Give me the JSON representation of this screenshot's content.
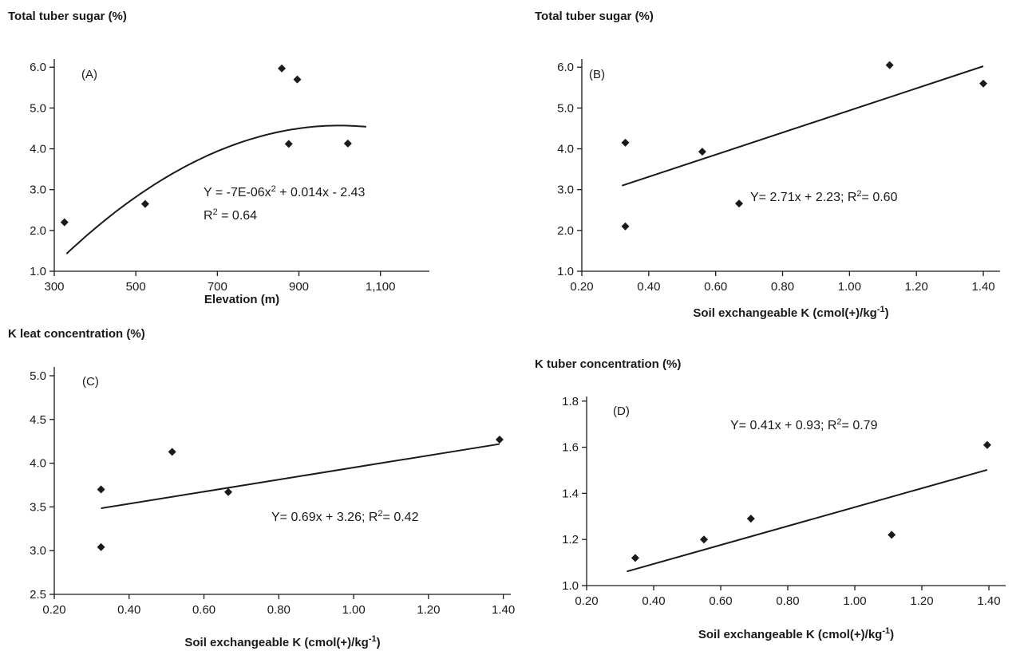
{
  "chart_data": [
    {
      "type": "scatter",
      "panel": "(A)",
      "ylabel": "Total tuber sugar (%)",
      "xlabel": "Elevation (m)",
      "xlim": [
        300,
        1220
      ],
      "ylim": [
        1.0,
        6.2
      ],
      "x_ticks": [
        300,
        500,
        700,
        900,
        1100
      ],
      "x_tick_labels": [
        "300",
        "500",
        "700",
        "900",
        "1,100"
      ],
      "y_ticks": [
        1.0,
        2.0,
        3.0,
        4.0,
        5.0,
        6.0
      ],
      "y_tick_labels": [
        "1.0",
        "2.0",
        "3.0",
        "4.0",
        "5.0",
        "6.0"
      ],
      "points": [
        {
          "x": 325,
          "y": 2.2
        },
        {
          "x": 523,
          "y": 2.65
        },
        {
          "x": 858,
          "y": 5.97
        },
        {
          "x": 875,
          "y": 4.12
        },
        {
          "x": 896,
          "y": 5.7
        },
        {
          "x": 1020,
          "y": 4.13
        }
      ],
      "fit": {
        "kind": "poly2",
        "a": -7e-06,
        "b": 0.014,
        "c": -2.43,
        "x_from": 330,
        "x_to": 1065
      },
      "equation": "Y = -7E-06x",
      "equation_sup": "2",
      "equation_tail": " + 0.014x - 2.43",
      "r2_label": "R",
      "r2_sup": "2",
      "r2_value": " = 0.64"
    },
    {
      "type": "scatter",
      "panel": "(B)",
      "ylabel": "Total tuber sugar (%)",
      "xlabel": "Soil exchangeable K (cmol(+)/kg",
      "xlabel_sup": "-1",
      "xlabel_tail": ")",
      "xlim": [
        0.2,
        1.45
      ],
      "ylim": [
        1.0,
        6.2
      ],
      "x_ticks": [
        0.2,
        0.4,
        0.6,
        0.8,
        1.0,
        1.2,
        1.4
      ],
      "x_tick_labels": [
        "0.20",
        "0.40",
        "0.60",
        "0.80",
        "1.00",
        "1.20",
        "1.40"
      ],
      "y_ticks": [
        1.0,
        2.0,
        3.0,
        4.0,
        5.0,
        6.0
      ],
      "y_tick_labels": [
        "1.0",
        "2.0",
        "3.0",
        "4.0",
        "5.0",
        "6.0"
      ],
      "points": [
        {
          "x": 0.33,
          "y": 4.15
        },
        {
          "x": 0.33,
          "y": 2.1
        },
        {
          "x": 0.56,
          "y": 3.93
        },
        {
          "x": 0.67,
          "y": 2.66
        },
        {
          "x": 1.12,
          "y": 6.05
        },
        {
          "x": 1.4,
          "y": 5.6
        }
      ],
      "fit": {
        "kind": "linear",
        "m": 2.71,
        "b": 2.23,
        "x_from": 0.32,
        "x_to": 1.4
      },
      "equation": "Y= 2.71x + 2.23; R",
      "equation_sup": "2",
      "equation_tail": "= 0.60"
    },
    {
      "type": "scatter",
      "panel": "(C)",
      "ylabel": "K leat concentration (%)",
      "xlabel": "Soil exchangeable K (cmol(+)/kg",
      "xlabel_sup": "-1",
      "xlabel_tail": ")",
      "xlim": [
        0.2,
        1.42
      ],
      "ylim": [
        2.5,
        5.1
      ],
      "x_ticks": [
        0.2,
        0.4,
        0.6,
        0.8,
        1.0,
        1.2,
        1.4
      ],
      "x_tick_labels": [
        "0.20",
        "0.40",
        "0.60",
        "0.80",
        "1.00",
        "1.20",
        "1.40"
      ],
      "y_ticks": [
        2.5,
        3.0,
        3.5,
        4.0,
        4.5,
        5.0
      ],
      "y_tick_labels": [
        "2.5",
        "3.0",
        "3.5",
        "4.0",
        "4.5",
        "5.0"
      ],
      "points": [
        {
          "x": 0.325,
          "y": 3.7
        },
        {
          "x": 0.325,
          "y": 3.04
        },
        {
          "x": 0.515,
          "y": 4.13
        },
        {
          "x": 0.665,
          "y": 3.67
        },
        {
          "x": 1.39,
          "y": 4.27
        }
      ],
      "fit": {
        "kind": "linear",
        "m": 0.69,
        "b": 3.26,
        "x_from": 0.325,
        "x_to": 1.39
      },
      "equation": "Y= 0.69x + 3.26; R",
      "equation_sup": "2",
      "equation_tail": "= 0.42"
    },
    {
      "type": "scatter",
      "panel": "(D)",
      "ylabel": "K tuber concentration (%)",
      "xlabel": "Soil exchangeable K (cmol(+)/kg",
      "xlabel_sup": "-1",
      "xlabel_tail": ")",
      "xlim": [
        0.2,
        1.45
      ],
      "ylim": [
        1.0,
        1.82
      ],
      "x_ticks": [
        0.2,
        0.4,
        0.6,
        0.8,
        1.0,
        1.2,
        1.4
      ],
      "x_tick_labels": [
        "0.20",
        "0.40",
        "0.60",
        "0.80",
        "1.00",
        "1.20",
        "1.40"
      ],
      "y_ticks": [
        1.0,
        1.2,
        1.4,
        1.6,
        1.8
      ],
      "y_tick_labels": [
        "1.0",
        "1.2",
        "1.4",
        "1.6",
        "1.8"
      ],
      "points": [
        {
          "x": 0.345,
          "y": 1.12
        },
        {
          "x": 0.55,
          "y": 1.2
        },
        {
          "x": 0.69,
          "y": 1.29
        },
        {
          "x": 1.11,
          "y": 1.22
        },
        {
          "x": 1.395,
          "y": 1.61
        }
      ],
      "fit": {
        "kind": "linear",
        "m": 0.41,
        "b": 0.93,
        "x_from": 0.32,
        "x_to": 1.395
      },
      "equation": "Y= 0.41x + 0.93; R",
      "equation_sup": "2",
      "equation_tail": "= 0.79"
    }
  ]
}
